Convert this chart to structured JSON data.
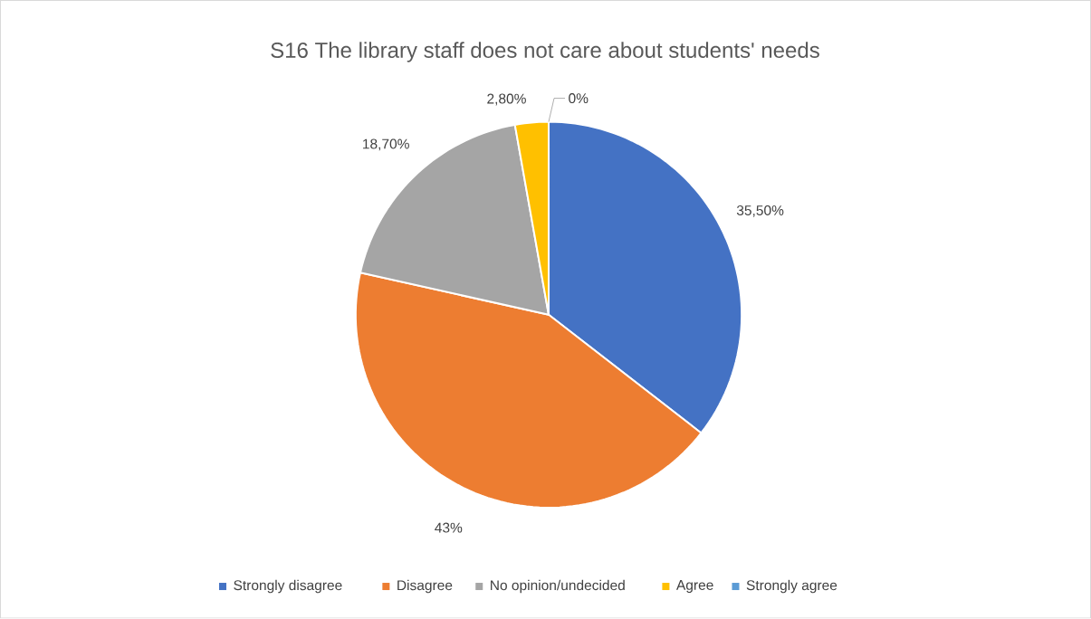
{
  "chart_data": {
    "type": "pie",
    "title": "S16 The library staff does not care about students' needs",
    "categories": [
      "Strongly disagree",
      "Disagree",
      "No opinion/undecided",
      "Agree",
      "Strongly agree"
    ],
    "values": [
      35.5,
      43,
      18.7,
      2.8,
      0
    ],
    "value_labels": [
      "35,50%",
      "43%",
      "18,70%",
      "2,80%",
      "0%"
    ],
    "colors": [
      "#4472c4",
      "#ed7d31",
      "#a5a5a5",
      "#ffc000",
      "#5b9bd5"
    ],
    "legend": "bottom"
  }
}
